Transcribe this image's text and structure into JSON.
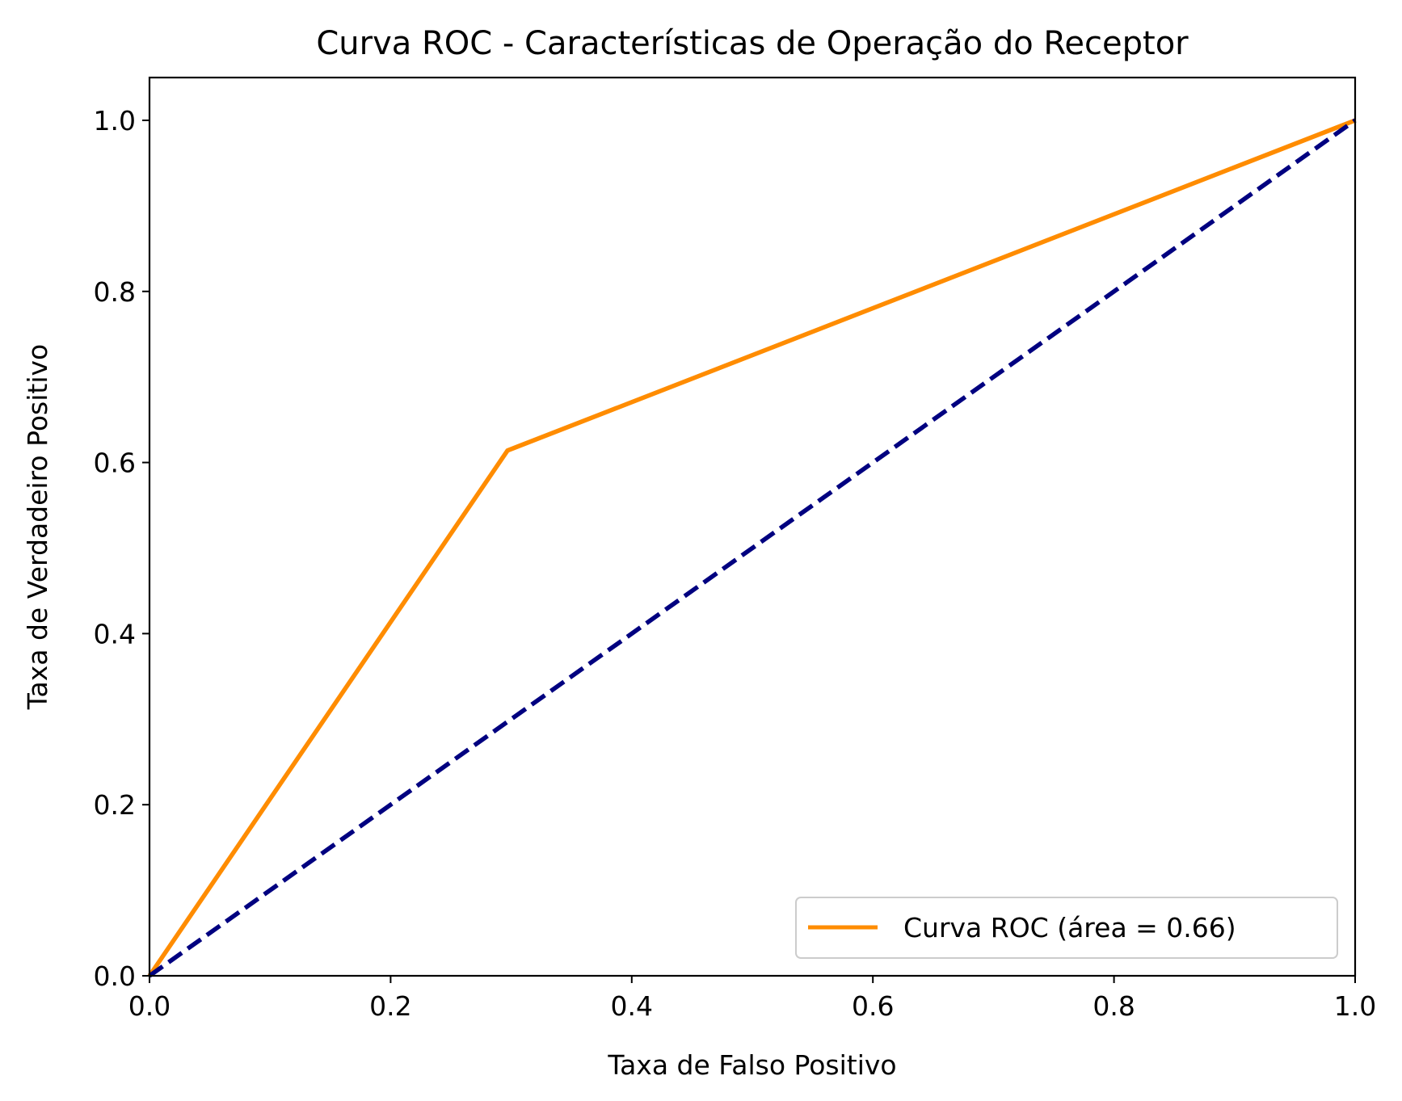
{
  "chart_data": {
    "type": "line",
    "title": "Curva ROC - Características de Operação do Receptor",
    "xlabel": "Taxa de Falso Positivo",
    "ylabel": "Taxa de Verdadeiro Positivo",
    "xlim": [
      0.0,
      1.0
    ],
    "ylim": [
      0.0,
      1.05
    ],
    "xticks": [
      "0.0",
      "0.2",
      "0.4",
      "0.6",
      "0.8",
      "1.0"
    ],
    "yticks": [
      "0.0",
      "0.2",
      "0.4",
      "0.6",
      "0.8",
      "1.0"
    ],
    "grid": false,
    "legend_position": "lower-right",
    "series": [
      {
        "name": "Curva ROC (área = 0.66)",
        "x": [
          0.0,
          0.297,
          1.0
        ],
        "y": [
          0.0,
          0.614,
          1.0
        ],
        "color": "#ff8c00",
        "style": "solid",
        "in_legend": true
      },
      {
        "x": [
          0.0,
          1.0
        ],
        "y": [
          0.0,
          1.0
        ],
        "color": "#000080",
        "style": "dashed",
        "in_legend": false
      }
    ]
  }
}
